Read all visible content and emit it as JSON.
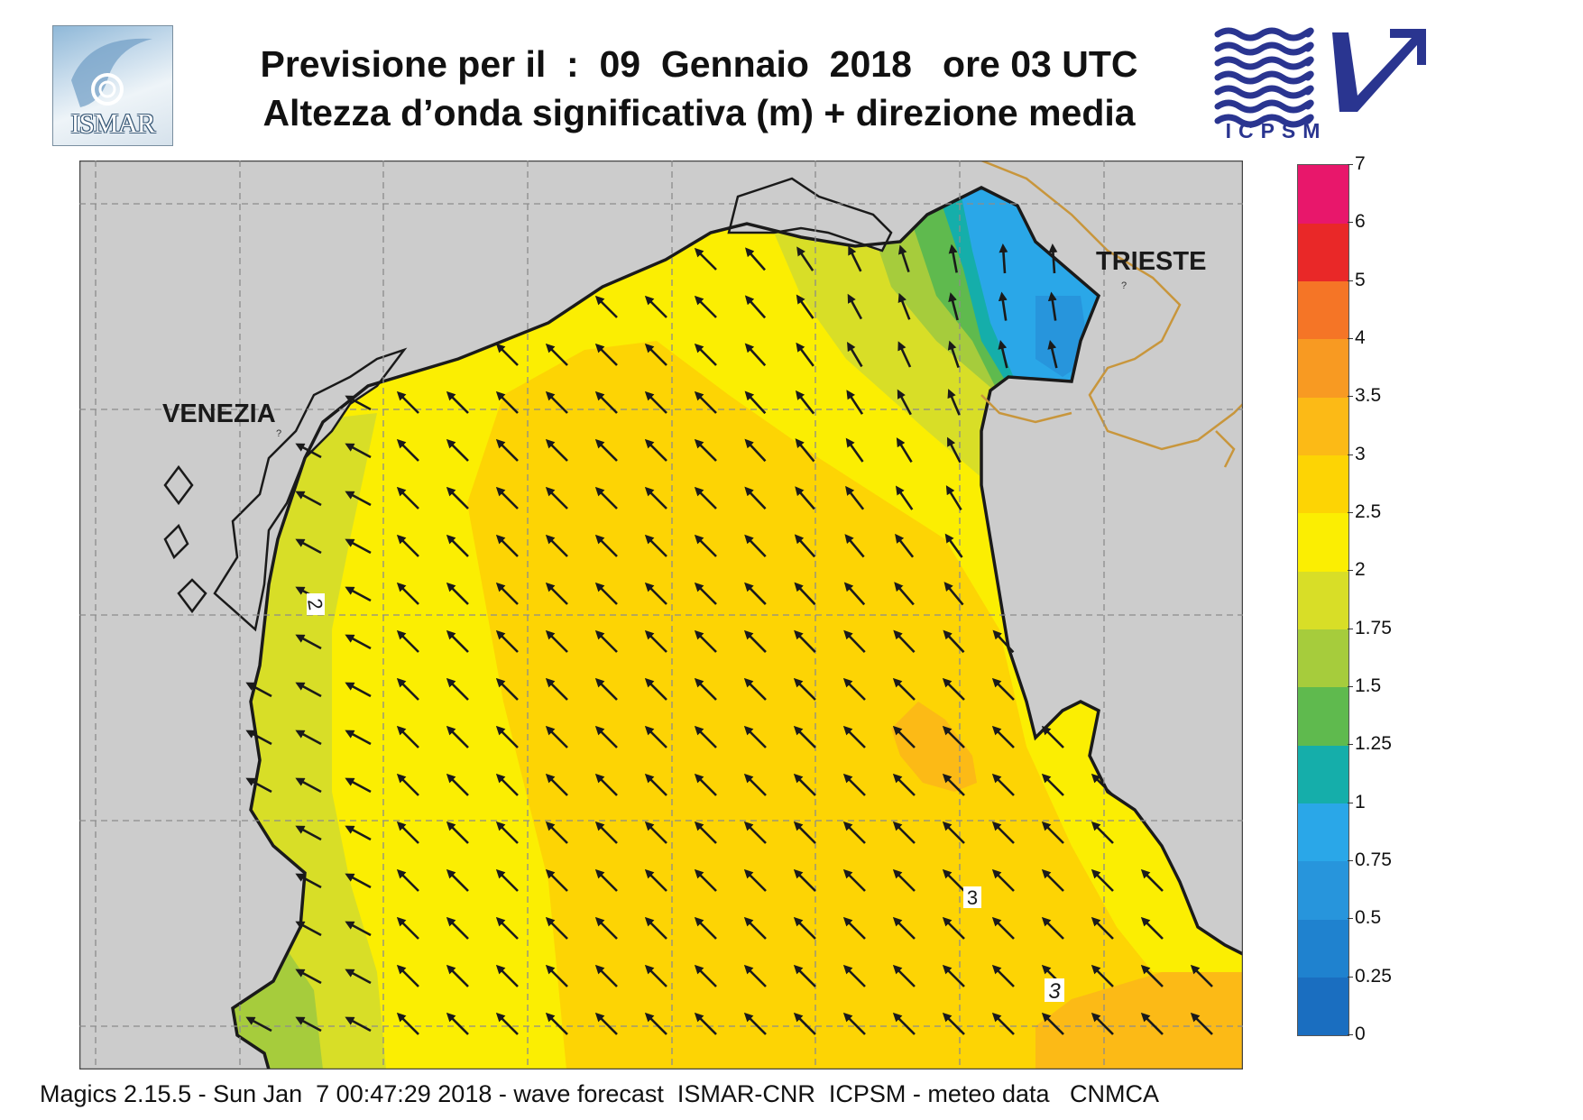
{
  "header": {
    "title_line1": "Previsione per il  :  09  Gennaio  2018   ore 03 UTC",
    "title_line2": "Altezza d’onda significativa (m) + direzione media"
  },
  "logos": {
    "left": {
      "name": "ismar-logo",
      "text": "ISMAR"
    },
    "right": {
      "name": "icpsm-logo",
      "text": "ICPSM"
    }
  },
  "map": {
    "region": "Northern Adriatic Sea",
    "cities": [
      {
        "id": "venezia",
        "label": "VENEZIA"
      },
      {
        "id": "trieste",
        "label": "TRIESTE"
      }
    ],
    "contour_labels": [
      "2",
      "3",
      "3"
    ],
    "colors": {
      "land": "#cccccc",
      "grid": "#8c8c8c",
      "coast": "#1a1a1a",
      "border": "#c8963c",
      "arrow": "#1a1a1a"
    },
    "mean_wave_direction": "from south-east toward north-west"
  },
  "legend": {
    "title": "Significant wave height (m)",
    "levels": [
      "0",
      "0.25",
      "0.5",
      "0.75",
      "1",
      "1.25",
      "1.5",
      "1.75",
      "2",
      "2.5",
      "3",
      "3.5",
      "4",
      "5",
      "6",
      "7"
    ],
    "colors": [
      "#1a6ec0",
      "#1f82cf",
      "#2795dc",
      "#2aa7e8",
      "#15aeaa",
      "#5fba4e",
      "#a6cc3c",
      "#d8de27",
      "#fbee02",
      "#fdd404",
      "#fcba16",
      "#f89a22",
      "#f57526",
      "#e92828",
      "#e8176b"
    ]
  },
  "footer": {
    "text": "Magics 2.15.5 - Sun Jan  7 00:47:29 2018 - wave forecast  ISMAR-CNR  ICPSM - meteo data   CNMCA"
  }
}
